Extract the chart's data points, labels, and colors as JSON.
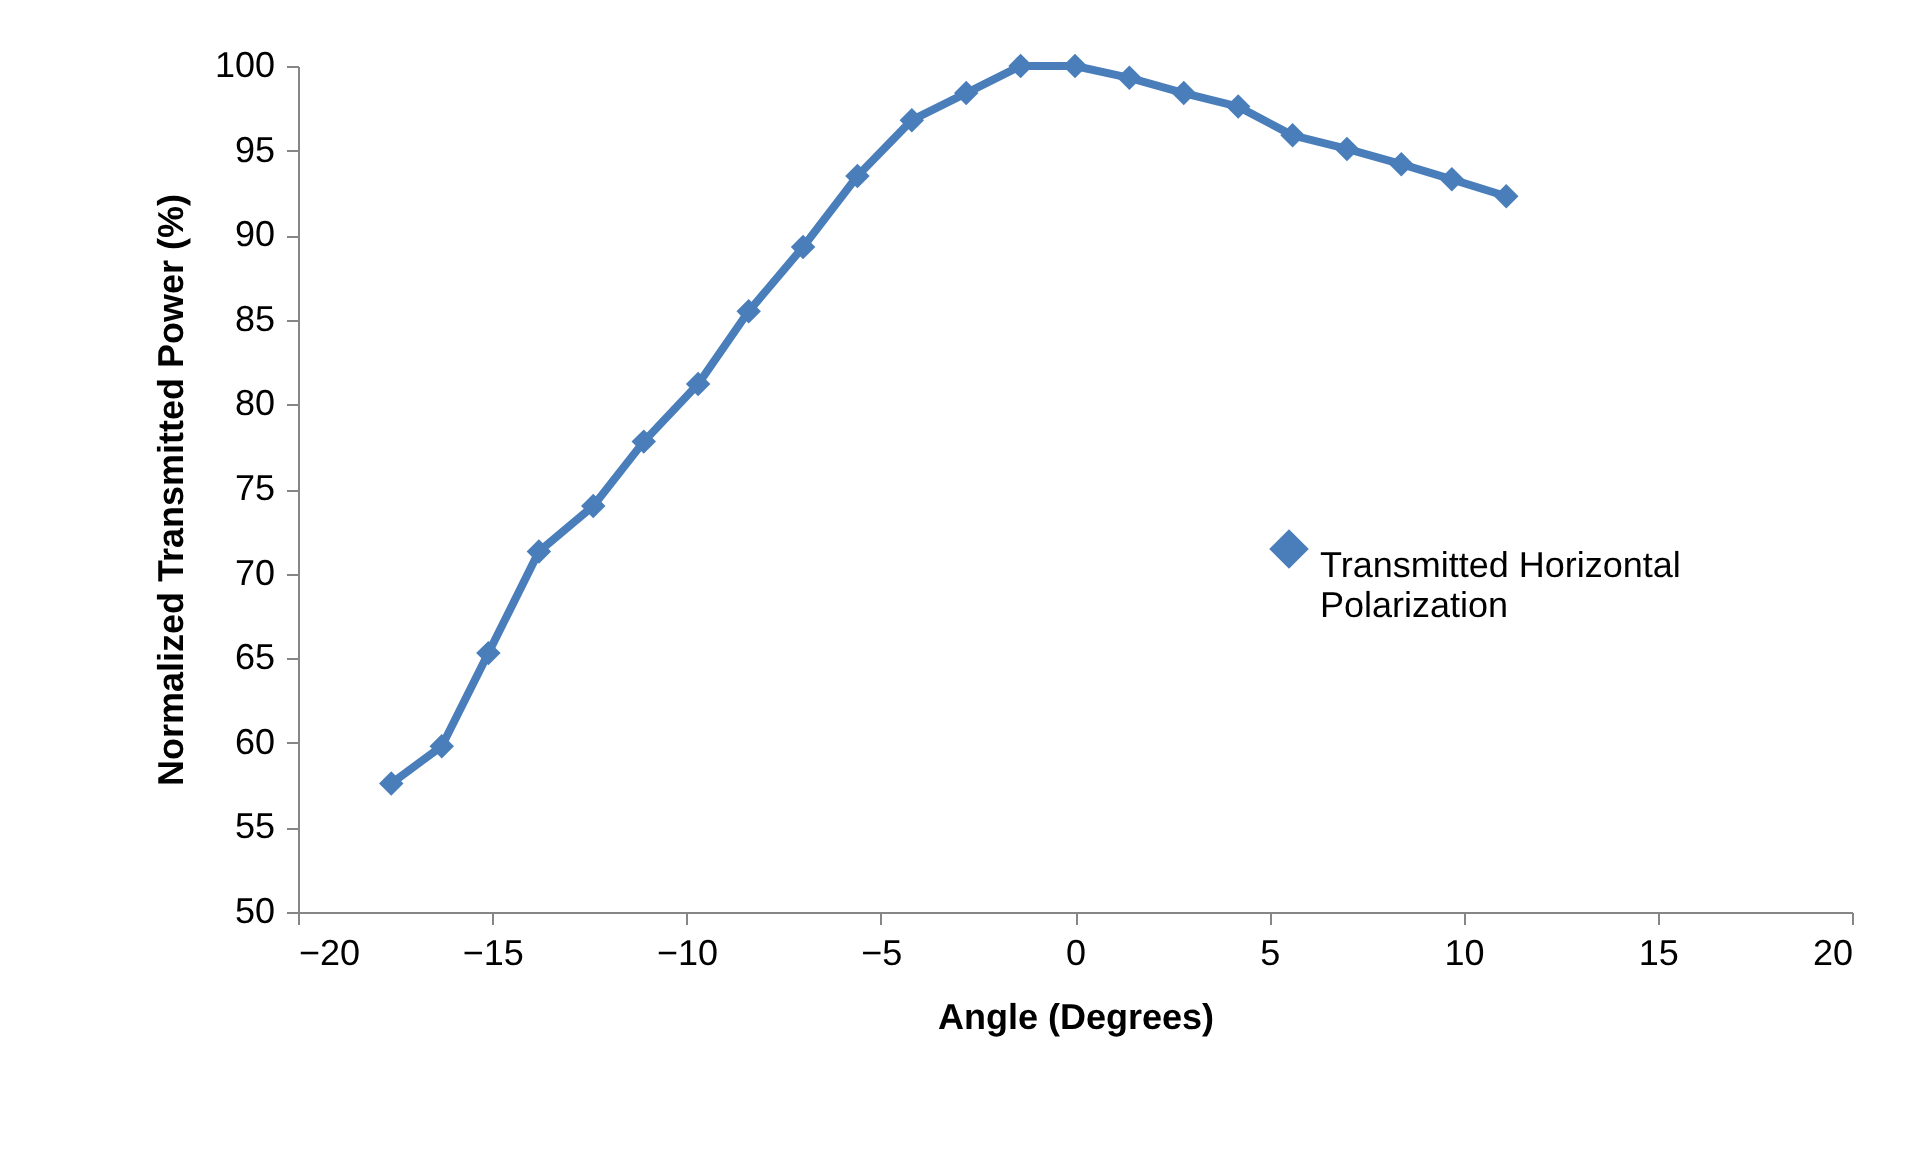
{
  "chart_data": {
    "type": "line",
    "xlabel": "Angle (Degrees)",
    "ylabel": "Normalized Transmitted Power (%)",
    "x": [
      -17.6,
      -16.3,
      -15.1,
      -13.8,
      -12.4,
      -11.1,
      -9.7,
      -8.4,
      -7.0,
      -5.6,
      -4.2,
      -2.8,
      -1.4,
      0,
      1.4,
      2.8,
      4.2,
      5.6,
      7.0,
      8.4,
      9.7,
      11.1
    ],
    "series": [
      {
        "name": "Transmitted Horizontal Polarization",
        "color": "#4a7ebb",
        "values": [
          57.6,
          59.8,
          65.3,
          71.3,
          74.0,
          77.8,
          81.2,
          85.5,
          89.3,
          93.5,
          96.8,
          98.4,
          100,
          100,
          99.3,
          98.4,
          97.6,
          95.9,
          95.1,
          94.2,
          93.3,
          92.3
        ]
      }
    ],
    "xlim": [
      -20,
      20
    ],
    "xticks": [
      -20,
      -15,
      -10,
      -5,
      0,
      5,
      10,
      15,
      20
    ],
    "ylim": [
      50,
      100
    ],
    "yticks": [
      50,
      55,
      60,
      65,
      70,
      75,
      80,
      85,
      90,
      95,
      100
    ],
    "grid": false,
    "legend": "right",
    "marker": "diamond",
    "line_style": "solid"
  }
}
